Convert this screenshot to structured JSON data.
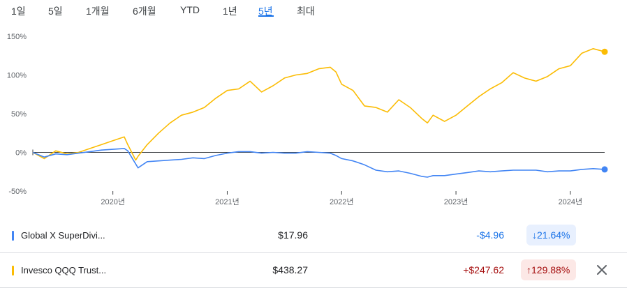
{
  "tabs": {
    "items": [
      "1일",
      "5일",
      "1개월",
      "6개월",
      "YTD",
      "1년",
      "5년",
      "최대"
    ],
    "active_index": 6
  },
  "colors": {
    "series_a": "#4285f4",
    "series_b": "#fbbc04",
    "negative": "#1a73e8",
    "positive": "#a50e0e",
    "neg_badge_bg": "#e8f0fe",
    "pos_badge_bg": "#fce8e6"
  },
  "rows": [
    {
      "name": "Global X SuperDivi...",
      "price": "$17.96",
      "change": "-$4.96",
      "pct": "21.64%",
      "direction": "down",
      "arrow": "↓",
      "color": "#4285f4"
    },
    {
      "name": "Invesco QQQ Trust...",
      "price": "$438.27",
      "change": "+$247.62",
      "pct": "129.88%",
      "direction": "up",
      "arrow": "↑",
      "color": "#fbbc04",
      "close_icon": "close-icon"
    }
  ],
  "chart_data": {
    "type": "line",
    "y_ticks": [
      "150%",
      "100%",
      "50%",
      "0%",
      "-50%"
    ],
    "x_ticks": [
      "2020년",
      "2021년",
      "2022년",
      "2023년",
      "2024년"
    ],
    "x_tick_values": [
      2020.0,
      2021.0,
      2022.0,
      2023.0,
      2024.0
    ],
    "xlim": [
      2019.3,
      2024.3
    ],
    "ylim": [
      -50,
      150
    ],
    "grid": false,
    "baseline": 0,
    "series": [
      {
        "name": "Invesco QQQ Trust...",
        "color": "#fbbc04",
        "x": [
          2019.3,
          2019.4,
          2019.5,
          2019.6,
          2019.7,
          2019.8,
          2019.9,
          2020.0,
          2020.1,
          2020.13,
          2020.2,
          2020.22,
          2020.3,
          2020.4,
          2020.5,
          2020.6,
          2020.7,
          2020.8,
          2020.9,
          2021.0,
          2021.1,
          2021.2,
          2021.3,
          2021.4,
          2021.5,
          2021.6,
          2021.7,
          2021.8,
          2021.9,
          2021.95,
          2022.0,
          2022.1,
          2022.2,
          2022.3,
          2022.4,
          2022.5,
          2022.6,
          2022.7,
          2022.75,
          2022.8,
          2022.9,
          2023.0,
          2023.1,
          2023.2,
          2023.3,
          2023.4,
          2023.5,
          2023.6,
          2023.7,
          2023.8,
          2023.9,
          2024.0,
          2024.1,
          2024.2,
          2024.3
        ],
        "values": [
          0,
          -8,
          2,
          -2,
          0,
          5,
          10,
          15,
          20,
          10,
          -10,
          -5,
          10,
          25,
          38,
          48,
          52,
          58,
          70,
          80,
          82,
          92,
          78,
          86,
          96,
          100,
          102,
          108,
          110,
          104,
          88,
          80,
          60,
          58,
          52,
          68,
          58,
          44,
          38,
          48,
          40,
          48,
          60,
          72,
          82,
          90,
          103,
          96,
          92,
          98,
          108,
          112,
          128,
          134,
          130
        ]
      },
      {
        "name": "Global X SuperDivi...",
        "color": "#4285f4",
        "x": [
          2019.3,
          2019.4,
          2019.5,
          2019.6,
          2019.7,
          2019.8,
          2019.9,
          2020.0,
          2020.1,
          2020.13,
          2020.2,
          2020.22,
          2020.3,
          2020.4,
          2020.5,
          2020.6,
          2020.7,
          2020.8,
          2020.9,
          2021.0,
          2021.1,
          2021.2,
          2021.3,
          2021.4,
          2021.5,
          2021.6,
          2021.7,
          2021.8,
          2021.9,
          2021.95,
          2022.0,
          2022.1,
          2022.2,
          2022.3,
          2022.4,
          2022.5,
          2022.6,
          2022.7,
          2022.75,
          2022.8,
          2022.9,
          2023.0,
          2023.1,
          2023.2,
          2023.3,
          2023.4,
          2023.5,
          2023.6,
          2023.7,
          2023.8,
          2023.9,
          2024.0,
          2024.1,
          2024.2,
          2024.3
        ],
        "values": [
          0,
          -6,
          -2,
          -3,
          -1,
          1,
          3,
          4,
          5,
          2,
          -15,
          -20,
          -12,
          -11,
          -10,
          -9,
          -7,
          -8,
          -4,
          -1,
          1,
          1,
          -1,
          0,
          -1,
          -1,
          1,
          0,
          -1,
          -4,
          -8,
          -11,
          -16,
          -23,
          -25,
          -24,
          -27,
          -31,
          -32,
          -30,
          -30,
          -28,
          -26,
          -24,
          -25,
          -24,
          -23,
          -23,
          -23,
          -25,
          -24,
          -24,
          -22,
          -21,
          -22
        ]
      }
    ]
  }
}
